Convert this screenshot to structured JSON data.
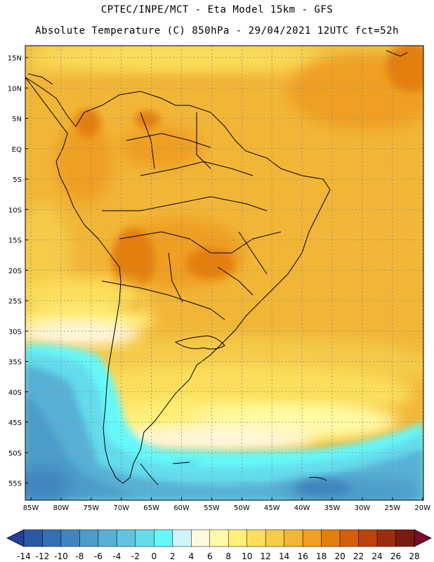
{
  "header": {
    "line1": "CPTEC/INPE/MCT -  Eta Model 15km - GFS",
    "line2": "Absolute Temperature (C) 850hPa - 29/04/2021 12UTC fct=52h"
  },
  "map": {
    "lat_labels": [
      "15N",
      "10N",
      "5N",
      "EQ",
      "5S",
      "10S",
      "15S",
      "20S",
      "25S",
      "30S",
      "35S",
      "40S",
      "45S",
      "50S",
      "55S"
    ],
    "lon_labels": [
      "85W",
      "80W",
      "75W",
      "70W",
      "65W",
      "60W",
      "55W",
      "50W",
      "45W",
      "40W",
      "35W",
      "30W",
      "25W",
      "20W"
    ],
    "lat_values": [
      15,
      10,
      5,
      0,
      -5,
      -10,
      -15,
      -20,
      -25,
      -30,
      -35,
      -40,
      -45,
      -50,
      -55
    ],
    "lon_values": [
      -85,
      -80,
      -75,
      -70,
      -65,
      -60,
      -55,
      -50,
      -45,
      -40,
      -35,
      -30,
      -25,
      -20
    ]
  },
  "colorbar": {
    "labels": [
      "-14",
      "-12",
      "-10",
      "-8",
      "-6",
      "-4",
      "-2",
      "0",
      "2",
      "4",
      "6",
      "8",
      "10",
      "12",
      "14",
      "16",
      "18",
      "20",
      "22",
      "24",
      "26",
      "28"
    ],
    "colors": [
      "#20409a",
      "#2a5aa6",
      "#3371b3",
      "#3f86c0",
      "#4b9cca",
      "#58b0d6",
      "#62c4e0",
      "#64dcec",
      "#66f8f8",
      "#cff4fb",
      "#fff8e0",
      "#fffaa6",
      "#fff07a",
      "#fbdf5c",
      "#f5cb48",
      "#f2b637",
      "#ef9f22",
      "#e47f0a",
      "#d45f08",
      "#bd420c",
      "#9b2c0c",
      "#7a1b12",
      "#7b0a27"
    ]
  }
}
